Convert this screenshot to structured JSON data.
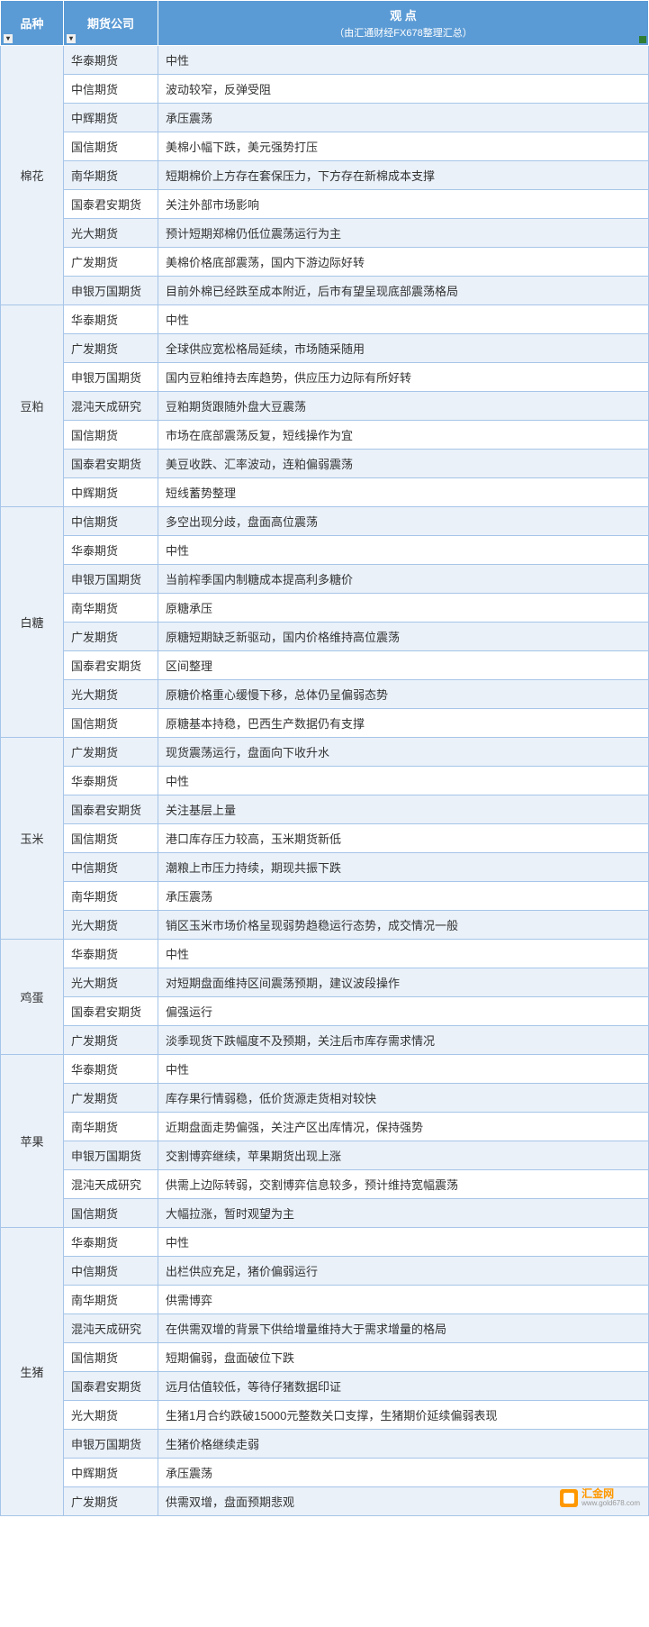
{
  "header": {
    "variety": "品种",
    "company": "期货公司",
    "opinion": "观  点",
    "opinion_sub": "（由汇通财经FX678整理汇总）"
  },
  "colors": {
    "header_bg": "#5b9bd5",
    "header_text": "#ffffff",
    "row_light": "#eaf1f9",
    "row_white": "#ffffff",
    "border": "#a6c5e8",
    "text": "#333333"
  },
  "watermark": {
    "brand": "汇金网",
    "url": "www.gold678.com"
  },
  "groups": [
    {
      "variety": "棉花",
      "rows": [
        {
          "company": "华泰期货",
          "opinion": "中性"
        },
        {
          "company": "中信期货",
          "opinion": "波动较窄，反弹受阻"
        },
        {
          "company": "中辉期货",
          "opinion": "承压震荡"
        },
        {
          "company": "国信期货",
          "opinion": "美棉小幅下跌，美元强势打压"
        },
        {
          "company": "南华期货",
          "opinion": "短期棉价上方存在套保压力，下方存在新棉成本支撑"
        },
        {
          "company": "国泰君安期货",
          "opinion": "关注外部市场影响"
        },
        {
          "company": "光大期货",
          "opinion": "预计短期郑棉仍低位震荡运行为主"
        },
        {
          "company": "广发期货",
          "opinion": "美棉价格底部震荡，国内下游边际好转"
        },
        {
          "company": "申银万国期货",
          "opinion": "目前外棉已经跌至成本附近，后市有望呈现底部震荡格局"
        }
      ]
    },
    {
      "variety": "豆粕",
      "rows": [
        {
          "company": "华泰期货",
          "opinion": "中性"
        },
        {
          "company": "广发期货",
          "opinion": "全球供应宽松格局延续，市场随采随用"
        },
        {
          "company": "申银万国期货",
          "opinion": "国内豆粕维持去库趋势，供应压力边际有所好转"
        },
        {
          "company": "混沌天成研究",
          "opinion": "豆粕期货跟随外盘大豆震荡"
        },
        {
          "company": "国信期货",
          "opinion": "市场在底部震荡反复，短线操作为宜"
        },
        {
          "company": "国泰君安期货",
          "opinion": "美豆收跌、汇率波动，连粕偏弱震荡"
        },
        {
          "company": "中辉期货",
          "opinion": "短线蓄势整理"
        }
      ]
    },
    {
      "variety": "白糖",
      "rows": [
        {
          "company": "中信期货",
          "opinion": "多空出现分歧，盘面高位震荡"
        },
        {
          "company": "华泰期货",
          "opinion": "中性"
        },
        {
          "company": "申银万国期货",
          "opinion": "当前榨季国内制糖成本提高利多糖价"
        },
        {
          "company": "南华期货",
          "opinion": "原糖承压"
        },
        {
          "company": "广发期货",
          "opinion": "原糖短期缺乏新驱动，国内价格维持高位震荡"
        },
        {
          "company": "国泰君安期货",
          "opinion": "区间整理"
        },
        {
          "company": "光大期货",
          "opinion": "原糖价格重心缓慢下移，总体仍呈偏弱态势"
        },
        {
          "company": "国信期货",
          "opinion": "原糖基本持稳，巴西生产数据仍有支撑"
        }
      ]
    },
    {
      "variety": "玉米",
      "rows": [
        {
          "company": "广发期货",
          "opinion": "现货震荡运行，盘面向下收升水"
        },
        {
          "company": "华泰期货",
          "opinion": "中性"
        },
        {
          "company": "国泰君安期货",
          "opinion": "关注基层上量"
        },
        {
          "company": "国信期货",
          "opinion": "港口库存压力较高，玉米期货新低"
        },
        {
          "company": "中信期货",
          "opinion": "潮粮上市压力持续，期现共振下跌"
        },
        {
          "company": "南华期货",
          "opinion": "承压震荡"
        },
        {
          "company": "光大期货",
          "opinion": "销区玉米市场价格呈现弱势趋稳运行态势，成交情况一般"
        }
      ]
    },
    {
      "variety": "鸡蛋",
      "rows": [
        {
          "company": "华泰期货",
          "opinion": "中性"
        },
        {
          "company": "光大期货",
          "opinion": "对短期盘面维持区间震荡预期，建议波段操作"
        },
        {
          "company": "国泰君安期货",
          "opinion": "偏强运行"
        },
        {
          "company": "广发期货",
          "opinion": "淡季现货下跌幅度不及预期，关注后市库存需求情况"
        }
      ]
    },
    {
      "variety": "苹果",
      "rows": [
        {
          "company": "华泰期货",
          "opinion": "中性"
        },
        {
          "company": "广发期货",
          "opinion": "库存果行情弱稳，低价货源走货相对较快"
        },
        {
          "company": "南华期货",
          "opinion": "近期盘面走势偏强，关注产区出库情况，保持强势"
        },
        {
          "company": "申银万国期货",
          "opinion": "交割博弈继续，苹果期货出现上涨"
        },
        {
          "company": "混沌天成研究",
          "opinion": "供需上边际转弱，交割博弈信息较多，预计维持宽幅震荡"
        },
        {
          "company": "国信期货",
          "opinion": "大幅拉涨，暂时观望为主"
        }
      ]
    },
    {
      "variety": "生猪",
      "rows": [
        {
          "company": "华泰期货",
          "opinion": "中性"
        },
        {
          "company": "中信期货",
          "opinion": "出栏供应充足，猪价偏弱运行"
        },
        {
          "company": "南华期货",
          "opinion": "供需博弈"
        },
        {
          "company": "混沌天成研究",
          "opinion": "在供需双增的背景下供给增量维持大于需求增量的格局"
        },
        {
          "company": "国信期货",
          "opinion": "短期偏弱，盘面破位下跌"
        },
        {
          "company": "国泰君安期货",
          "opinion": "远月估值较低，等待仔猪数据印证"
        },
        {
          "company": "光大期货",
          "opinion": "生猪1月合约跌破15000元整数关口支撑，生猪期价延续偏弱表现"
        },
        {
          "company": "申银万国期货",
          "opinion": "生猪价格继续走弱"
        },
        {
          "company": "中辉期货",
          "opinion": "承压震荡"
        },
        {
          "company": "广发期货",
          "opinion": "供需双增，盘面预期悲观"
        }
      ]
    }
  ]
}
